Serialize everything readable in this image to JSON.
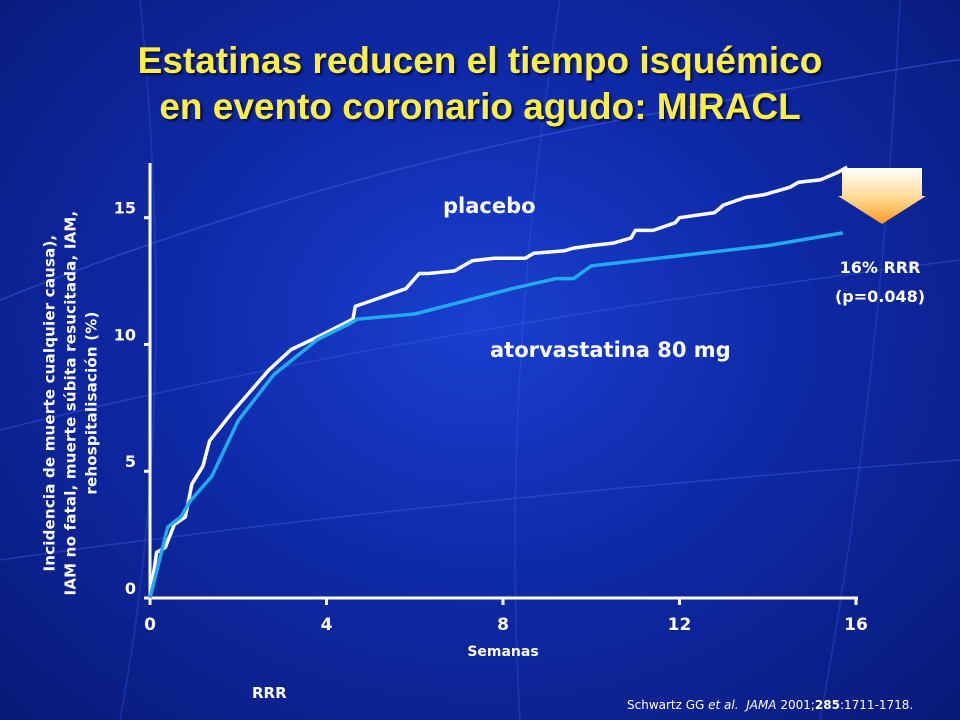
{
  "slide": {
    "title_line1": "Estatinas reducen el tiempo isquémico",
    "title_line2": "en evento coronario agudo: MIRACL",
    "ylabel_line1": "Incidencia de muerte cualquier causa),",
    "ylabel_line2": "IAM no fatal, muerte súbita resucitada, IAM,",
    "ylabel_line3": "rehospitalisación (%)",
    "rrr_value": "16% RRR",
    "rrr_p": "(p=0.048)",
    "footer_label": "RRR",
    "citation": {
      "authors": "Schwartz GG ",
      "etal": "et al.",
      "journal": "JAMA",
      "year": " 2001;",
      "volume": "285",
      "pages": ":1711-1718."
    }
  },
  "colors": {
    "title": "#ffee44",
    "placebo": "#ffffff",
    "atorvastatin": "#22aaee",
    "axis": "#ffffff",
    "arrow": "#ffc060"
  },
  "chart_data": {
    "type": "line",
    "xlabel": "Semanas",
    "ylabel": "Incidencia de muerte cualquier causa), IAM no fatal, muerte súbita resucitada, IAM, rehospitalisación (%)",
    "xlim": [
      0,
      16
    ],
    "ylim": [
      0,
      17
    ],
    "xticks": [
      0,
      4,
      8,
      12,
      16
    ],
    "yticks": [
      0,
      5,
      10,
      15
    ],
    "series": [
      {
        "name": "placebo",
        "x": [
          0,
          0.15,
          0.35,
          0.55,
          0.8,
          0.95,
          1.2,
          1.35,
          1.9,
          2.7,
          3.2,
          3.8,
          4.6,
          4.65,
          5.8,
          6.1,
          6.3,
          6.9,
          7.3,
          7.8,
          8.5,
          8.7,
          9.4,
          9.6,
          10.0,
          10.5,
          10.9,
          11.0,
          11.4,
          11.9,
          12.0,
          12.8,
          13.0,
          13.5,
          13.9,
          14.5,
          14.7,
          15.2,
          15.6,
          15.8
        ],
        "y": [
          0,
          1.8,
          2.0,
          2.9,
          3.2,
          4.5,
          5.2,
          6.2,
          7.4,
          9.0,
          9.8,
          10.3,
          11.0,
          11.5,
          12.2,
          12.8,
          12.8,
          12.9,
          13.3,
          13.4,
          13.4,
          13.6,
          13.7,
          13.8,
          13.9,
          14.0,
          14.2,
          14.5,
          14.5,
          14.8,
          15.0,
          15.2,
          15.5,
          15.8,
          15.9,
          16.2,
          16.4,
          16.5,
          16.8,
          17.0
        ]
      },
      {
        "name": "atorvastatina 80 mg",
        "x": [
          0,
          0.4,
          0.7,
          0.9,
          1.4,
          2.0,
          2.8,
          3.8,
          4.5,
          4.7,
          6.0,
          8.2,
          9.2,
          9.6,
          10.0,
          12.0,
          14.0,
          15.7
        ],
        "y": [
          0,
          2.8,
          3.2,
          3.8,
          4.8,
          7.0,
          8.8,
          10.2,
          10.8,
          11.0,
          11.2,
          12.2,
          12.6,
          12.6,
          13.1,
          13.5,
          13.9,
          14.4
        ]
      }
    ]
  }
}
